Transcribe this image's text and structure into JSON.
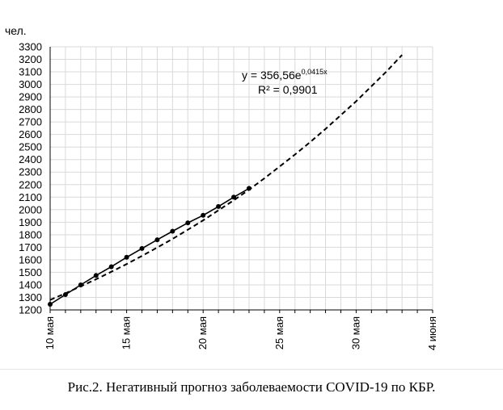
{
  "chart_data": {
    "type": "line",
    "title": "",
    "ylabel": "чел.",
    "xlabel": "",
    "ylim": [
      1200,
      3300
    ],
    "y_ticks": [
      1200,
      1300,
      1400,
      1500,
      1600,
      1700,
      1800,
      1900,
      2000,
      2100,
      2200,
      2300,
      2400,
      2500,
      2600,
      2700,
      2800,
      2900,
      3000,
      3100,
      3200,
      3300
    ],
    "x_range": [
      10,
      35
    ],
    "x_ticks": [
      {
        "x": 10,
        "label": "10 мая"
      },
      {
        "x": 15,
        "label": "15 мая"
      },
      {
        "x": 20,
        "label": "20 мая"
      },
      {
        "x": 25,
        "label": "25 мая"
      },
      {
        "x": 30,
        "label": "30 мая"
      },
      {
        "x": 35,
        "label": "4 июня"
      }
    ],
    "grid": true,
    "series": [
      {
        "kind": "actual",
        "style": "solid-markers",
        "x": [
          10,
          11,
          12,
          13,
          14,
          15,
          16,
          17,
          18,
          19,
          20,
          21,
          22,
          23
        ],
        "y": [
          1245,
          1322,
          1400,
          1475,
          1545,
          1620,
          1690,
          1760,
          1828,
          1895,
          1955,
          2025,
          2100,
          2170
        ]
      },
      {
        "kind": "trend",
        "style": "dashed",
        "x": [
          10,
          11,
          12,
          13,
          14,
          15,
          16,
          17,
          18,
          19,
          20,
          21,
          22,
          23,
          24,
          25,
          26,
          27,
          28,
          29,
          30,
          31,
          32,
          33
        ],
        "y": [
          1280,
          1333,
          1388,
          1445,
          1505,
          1566,
          1631,
          1698,
          1767,
          1840,
          1915,
          1995,
          2075,
          2160,
          2250,
          2345,
          2440,
          2540,
          2645,
          2755,
          2865,
          2985,
          3105,
          3235
        ]
      }
    ],
    "annotation": {
      "equation_main": "y = 356,56e",
      "equation_exp": "0,0415x",
      "r2": "R² = 0,9901"
    }
  },
  "caption": "Рис.2. Негативный прогноз заболеваемости COVID-19 по КБР."
}
